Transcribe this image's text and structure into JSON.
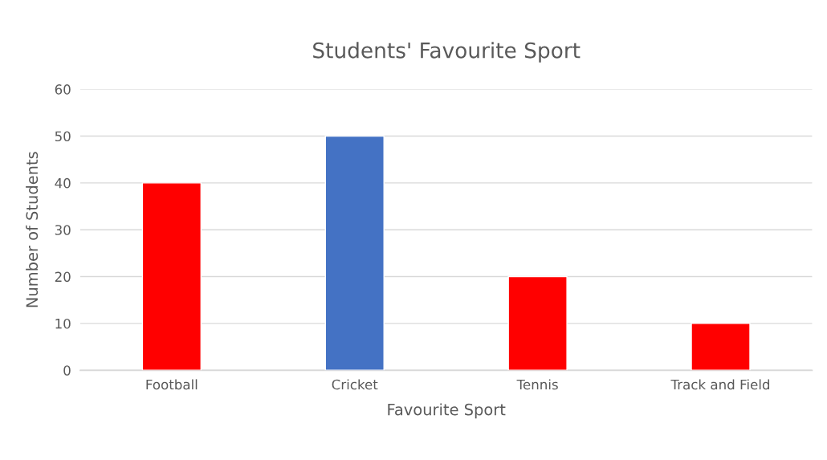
{
  "chart_data": {
    "type": "bar",
    "title": "Students' Favourite Sport",
    "xlabel": "Favourite Sport",
    "ylabel": "Number of Students",
    "categories": [
      "Football",
      "Cricket",
      "Tennis",
      "Track and Field"
    ],
    "values": [
      40,
      50,
      20,
      10
    ],
    "colors": [
      "#ff0000",
      "#4472c4",
      "#ff0000",
      "#ff0000"
    ],
    "ylim": [
      0,
      60
    ],
    "yticks": [
      0,
      10,
      20,
      30,
      40,
      50,
      60
    ],
    "grid": "y",
    "legend": false
  }
}
